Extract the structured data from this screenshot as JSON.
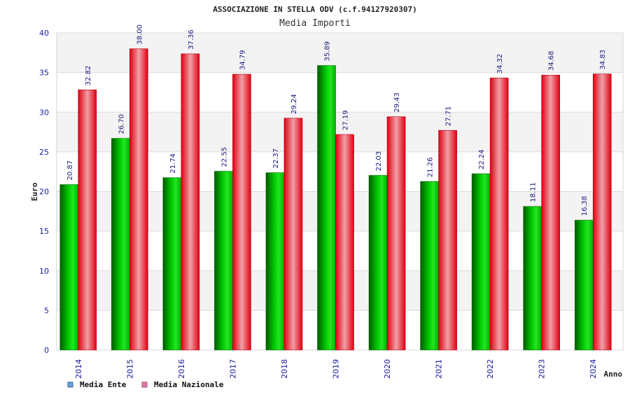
{
  "chart_data": {
    "type": "bar",
    "title": "ASSOCIAZIONE IN STELLA ODV (c.f.94127920307)",
    "subtitle": "Media Importi",
    "xlabel": "Anno",
    "ylabel": "Euro",
    "ylim": [
      0,
      40
    ],
    "yticks": [
      0,
      5,
      10,
      15,
      20,
      25,
      30,
      35,
      40
    ],
    "categories": [
      "2014",
      "2015",
      "2016",
      "2017",
      "2018",
      "2019",
      "2020",
      "2021",
      "2022",
      "2023",
      "2024"
    ],
    "series": [
      {
        "name": "Media Ente",
        "color": "#00c000",
        "legend_color": "#5fa3e6",
        "values": [
          20.87,
          26.7,
          21.74,
          22.55,
          22.37,
          35.89,
          22.03,
          21.26,
          22.24,
          18.11,
          16.38
        ],
        "labels": [
          "20.87",
          "26.70",
          "21.74",
          "22.55",
          "22.37",
          "35.89",
          "22.03",
          "21.26",
          "22.24",
          "18.11",
          "16.38"
        ]
      },
      {
        "name": "Media Nazionale",
        "color": "#e00010",
        "legend_color": "#e07aa8",
        "values": [
          32.82,
          38.0,
          37.36,
          34.79,
          29.24,
          27.19,
          29.43,
          27.71,
          34.32,
          34.68,
          34.83
        ],
        "labels": [
          "32.82",
          "38.00",
          "37.36",
          "34.79",
          "29.24",
          "27.19",
          "29.43",
          "27.71",
          "34.32",
          "34.68",
          "34.83"
        ]
      }
    ],
    "grid": true,
    "legend_position": "bottom-left"
  }
}
